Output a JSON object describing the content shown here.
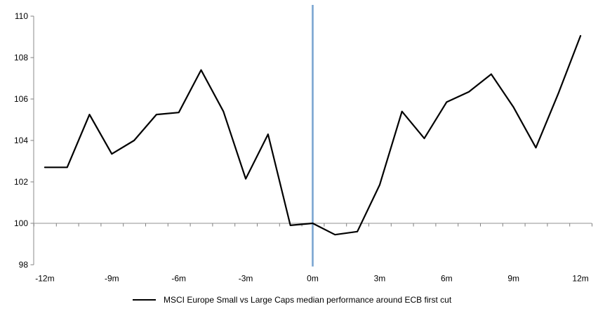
{
  "chart_data": {
    "type": "line",
    "title": "",
    "legend_label": "MSCI Europe Small vs Large Caps median performance around ECB first cut",
    "legend_position": "bottom-center",
    "x_unit": "months around ECB first cut",
    "x": [
      -12,
      -11,
      -10,
      -9,
      -8,
      -7,
      -6,
      -5,
      -4,
      -3,
      -2,
      -1,
      0,
      1,
      2,
      3,
      4,
      5,
      6,
      7,
      8,
      9,
      10,
      11,
      12
    ],
    "series": [
      {
        "name": "MSCI Europe Small vs Large Caps median performance around ECB first cut",
        "color": "#000000",
        "values": [
          102.7,
          102.7,
          105.25,
          103.35,
          104.0,
          105.25,
          105.35,
          107.4,
          105.4,
          102.15,
          104.3,
          99.9,
          100.0,
          99.45,
          99.6,
          101.85,
          105.4,
          104.1,
          105.85,
          106.35,
          107.2,
          105.6,
          103.65,
          106.25,
          109.05
        ]
      }
    ],
    "ylim": [
      98,
      110
    ],
    "yticks": [
      98,
      100,
      102,
      104,
      106,
      108,
      110
    ],
    "ytick_labels": [
      "98",
      "100",
      "102",
      "104",
      "106",
      "108",
      "110"
    ],
    "xticks": [
      {
        "value": -12,
        "label": "-12m"
      },
      {
        "value": -9,
        "label": "-9m"
      },
      {
        "value": -6,
        "label": "-6m"
      },
      {
        "value": -3,
        "label": "-3m"
      },
      {
        "value": 0,
        "label": "0m"
      },
      {
        "value": 3,
        "label": "3m"
      },
      {
        "value": 6,
        "label": "6m"
      },
      {
        "value": 9,
        "label": "9m"
      },
      {
        "value": 12,
        "label": "12m"
      }
    ],
    "minor_xtick_every": 1,
    "baseline_value": 100,
    "event_line": {
      "x": 0,
      "color": "#79A5D1"
    },
    "axis_color": "#A6A6A6",
    "tick_color": "#808080",
    "grid": "baseline-only"
  }
}
